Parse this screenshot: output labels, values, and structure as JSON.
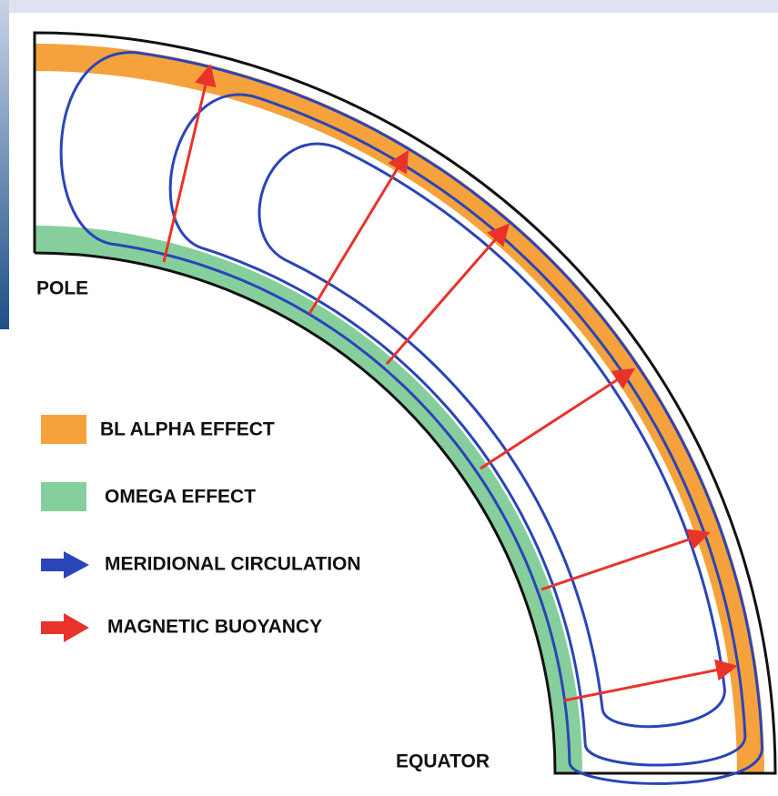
{
  "labels": {
    "pole": "POLE",
    "equator": "EQUATOR"
  },
  "legend": [
    {
      "label": "BL ALPHA EFFECT"
    },
    {
      "label": "OMEGA EFFECT"
    },
    {
      "label": "MERIDIONAL CIRCULATION"
    },
    {
      "label": "MAGNETIC BUOYANCY"
    }
  ]
}
